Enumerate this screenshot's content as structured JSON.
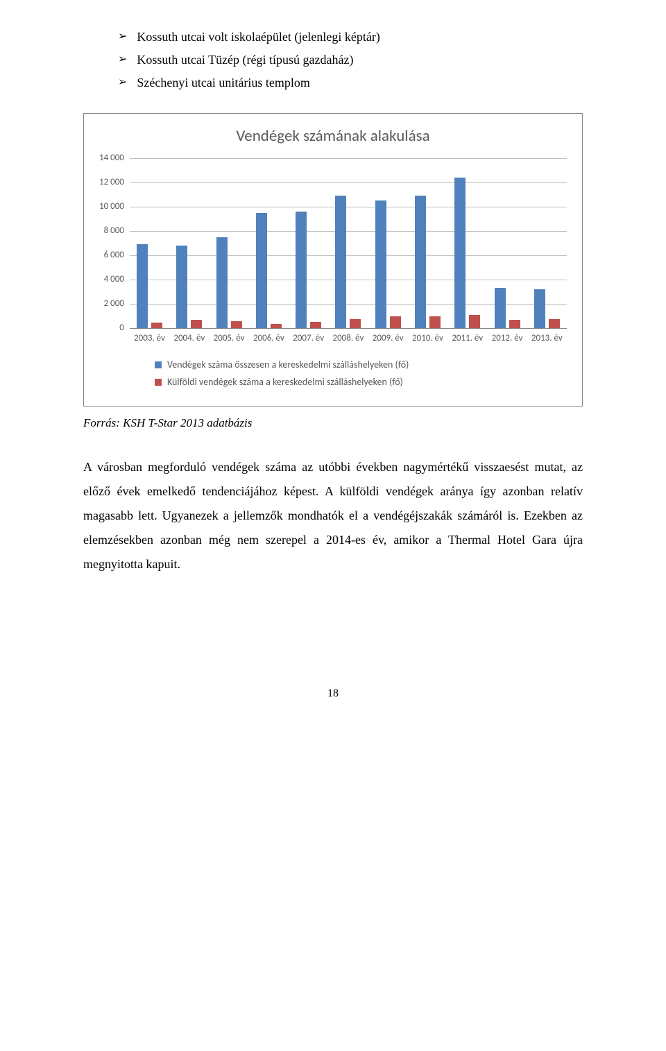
{
  "bullets": [
    "Kossuth utcai volt iskolaépület (jelenlegi képtár)",
    "Kossuth utcai Tüzép (régi típusú gazdaház)",
    "Széchenyi utcai unitárius templom"
  ],
  "chart": {
    "title": "Vendégek számának alakulása",
    "y_ticks": [
      "14 000",
      "12 000",
      "10 000",
      "8 000",
      "6 000",
      "4 000",
      "2 000",
      "0"
    ],
    "y_max": 14000,
    "categories": [
      "2003. év",
      "2004. év",
      "2005. év",
      "2006. év",
      "2007. év",
      "2008. év",
      "2009. év",
      "2010. év",
      "2011. év",
      "2012. év",
      "2013. év"
    ],
    "series": [
      {
        "name": "Vendégek száma összesen a kereskedelmi szálláshelyeken (fő)",
        "color": "#4f81bd",
        "values": [
          6900,
          6800,
          7500,
          9500,
          9600,
          10900,
          10500,
          10900,
          12400,
          3300,
          3200
        ]
      },
      {
        "name": "Külföldi vendégek száma a kereskedelmi szálláshelyeken (fő)",
        "color": "#c0504d",
        "values": [
          450,
          700,
          550,
          350,
          500,
          750,
          950,
          1000,
          1100,
          700,
          750
        ]
      }
    ],
    "grid_color": "#bfbfbf",
    "text_color": "#595959",
    "background": "#ffffff"
  },
  "source": "Forrás: KSH T-Star 2013 adatbázis",
  "paragraph": "A városban megforduló vendégek száma az utóbbi években nagymértékű visszaesést mutat, az előző évek emelkedő tendenciájához képest. A külföldi vendégek aránya így azonban relatív magasabb lett. Ugyanezek a jellemzők mondhatók el a vendégéjszakák számáról is. Ezekben az elemzésekben azonban még nem szerepel a 2014-es év, amikor a Thermal Hotel Gara újra megnyitotta kapuit.",
  "page_number": "18"
}
